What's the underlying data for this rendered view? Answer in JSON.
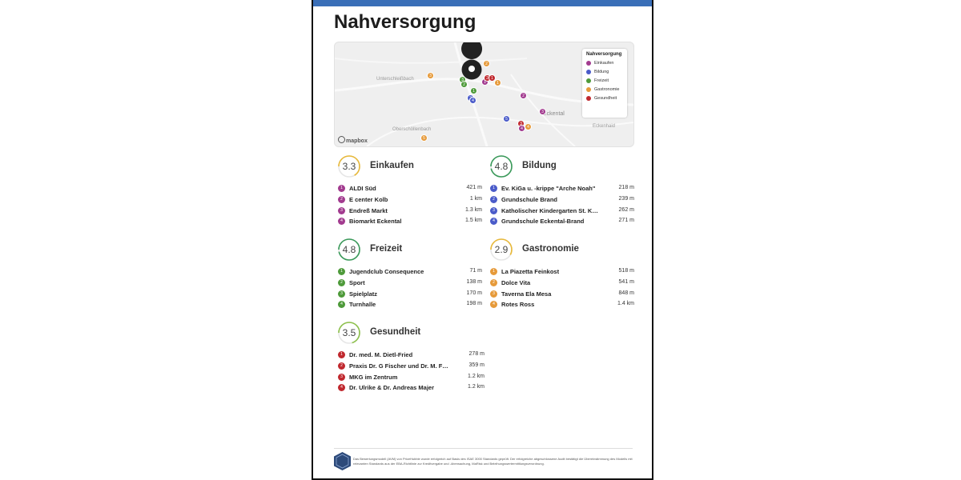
{
  "title": "Nahversorgung",
  "map": {
    "places": [
      "Unterschleißbach",
      "Eckental",
      "Eckenhaid",
      "Oberschöllenbach"
    ],
    "attribution": "mapbox",
    "legend": {
      "title": "Nahversorgung",
      "items": [
        {
          "label": "Einkaufen",
          "color": "#a23b8f"
        },
        {
          "label": "Bildung",
          "color": "#4a5bc9"
        },
        {
          "label": "Freizeit",
          "color": "#4e9a3a"
        },
        {
          "label": "Gastronomie",
          "color": "#e69a3a"
        },
        {
          "label": "Gesundheit",
          "color": "#c0282e"
        }
      ]
    }
  },
  "sections": [
    {
      "id": "einkaufen",
      "title": "Einkaufen",
      "score": "3.3",
      "score_value": 3.3,
      "color": "#a23b8f",
      "ring_color": "#e8b93a",
      "items": [
        {
          "num": "1",
          "name": "ALDI Süd",
          "dist": "421 m"
        },
        {
          "num": "2",
          "name": "E center Kolb",
          "dist": "1 km"
        },
        {
          "num": "3",
          "name": "Endreß Markt",
          "dist": "1.3 km"
        },
        {
          "num": "4",
          "name": "Biomarkt Eckental",
          "dist": "1.5 km"
        }
      ]
    },
    {
      "id": "bildung",
      "title": "Bildung",
      "score": "4.8",
      "score_value": 4.8,
      "color": "#4a5bc9",
      "ring_color": "#3a9a5a",
      "items": [
        {
          "num": "1",
          "name": "Ev. KiGa u. -krippe \"Arche Noah\"",
          "dist": "218 m"
        },
        {
          "num": "2",
          "name": "Grundschule Brand",
          "dist": "239 m"
        },
        {
          "num": "3",
          "name": "Katholischer Kindergarten St. Kunigund",
          "dist": "262 m"
        },
        {
          "num": "4",
          "name": "Grundschule Eckental-Brand",
          "dist": "271 m"
        }
      ]
    },
    {
      "id": "freizeit",
      "title": "Freizeit",
      "score": "4.8",
      "score_value": 4.8,
      "color": "#4e9a3a",
      "ring_color": "#3a9a5a",
      "items": [
        {
          "num": "1",
          "name": "Jugendclub Consequence",
          "dist": "71 m"
        },
        {
          "num": "2",
          "name": "Sport",
          "dist": "138 m"
        },
        {
          "num": "3",
          "name": "Spielplatz",
          "dist": "170 m"
        },
        {
          "num": "4",
          "name": "Turnhalle",
          "dist": "198 m"
        }
      ]
    },
    {
      "id": "gastronomie",
      "title": "Gastronomie",
      "score": "2.9",
      "score_value": 2.9,
      "color": "#e69a3a",
      "ring_color": "#e8b93a",
      "items": [
        {
          "num": "1",
          "name": "La Piazetta Feinkost",
          "dist": "518 m"
        },
        {
          "num": "2",
          "name": "Dolce Vita",
          "dist": "541 m"
        },
        {
          "num": "3",
          "name": "Taverna Ela Mesa",
          "dist": "848 m"
        },
        {
          "num": "4",
          "name": "Rotes Ross",
          "dist": "1.4 km"
        }
      ]
    },
    {
      "id": "gesundheit",
      "title": "Gesundheit",
      "score": "3.5",
      "score_value": 3.5,
      "color": "#c0282e",
      "ring_color": "#8cc04a",
      "items": [
        {
          "num": "1",
          "name": "Dr. med. M. Dietl-Fried",
          "dist": "278 m"
        },
        {
          "num": "2",
          "name": "Praxis Dr. G Fischer und Dr. M. Fischer",
          "dist": "359 m"
        },
        {
          "num": "3",
          "name": "MKG im Zentrum",
          "dist": "1.2 km"
        },
        {
          "num": "4",
          "name": "Dr. Ulrike & Dr. Andreas Majer",
          "dist": "1.2 km"
        }
      ]
    }
  ],
  "footer": {
    "text": "Das Bewertungsmodell (AVM) von PriceHubble wurde erfolgreich auf Basis des ISAE 3000 Standards geprüft. Der erfolgreiche abgeschlossene Audit bestätigt die Übereinstimmung des Modells mit relevanten Standards aus der EBA-Richtlinie zur Kreditvergabe und -überwachung, MaRisk und Beleihungswertermittlungsverordnung."
  }
}
